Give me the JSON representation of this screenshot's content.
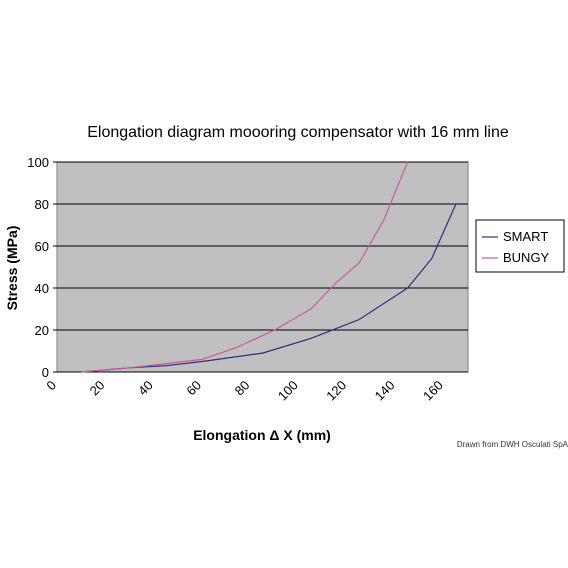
{
  "chart_data": {
    "type": "line",
    "title": "Elongation diagram moooring compensator with 16 mm line",
    "xlabel": "Elongation Δ X (mm)",
    "ylabel": "Stress (MPa)",
    "xlim": [
      0,
      170
    ],
    "ylim": [
      0,
      100
    ],
    "xticks": [
      0,
      20,
      40,
      60,
      80,
      100,
      120,
      140,
      160
    ],
    "yticks": [
      0,
      20,
      40,
      60,
      80,
      100
    ],
    "grid": "horizontal",
    "legend_position": "right",
    "series": [
      {
        "name": "SMART",
        "color": "#2e2e7a",
        "x": [
          10,
          30,
          45,
          60,
          85,
          105,
          125,
          145,
          155,
          165
        ],
        "y": [
          0,
          2,
          3,
          5,
          9,
          16,
          25,
          40,
          54,
          80
        ]
      },
      {
        "name": "BUNGY",
        "color": "#c85aa0",
        "x": [
          10,
          30,
          45,
          60,
          75,
          90,
          105,
          115,
          125,
          135,
          145
        ],
        "y": [
          0,
          2,
          4,
          6,
          12,
          20,
          30,
          42,
          52,
          72,
          100
        ]
      }
    ],
    "plot_background": "#c0c0c0",
    "credit": "Drawn from DWH Osculati SpA"
  }
}
